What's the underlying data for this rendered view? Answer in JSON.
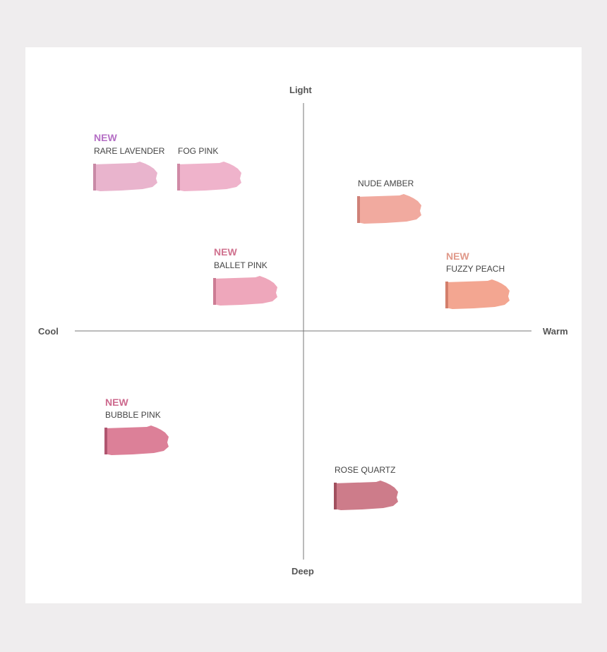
{
  "axes": {
    "top": "Light",
    "bottom": "Deep",
    "left": "Cool",
    "right": "Warm"
  },
  "shades": [
    {
      "badge": "NEW",
      "name": "RARE LAVENDER"
    },
    {
      "name": "FOG PINK"
    },
    {
      "name": "NUDE AMBER"
    },
    {
      "badge": "NEW",
      "name": "BALLET PINK"
    },
    {
      "badge": "NEW",
      "name": "FUZZY PEACH"
    },
    {
      "badge": "NEW",
      "name": "BUBBLE PINK"
    },
    {
      "name": "ROSE QUARTZ"
    }
  ]
}
